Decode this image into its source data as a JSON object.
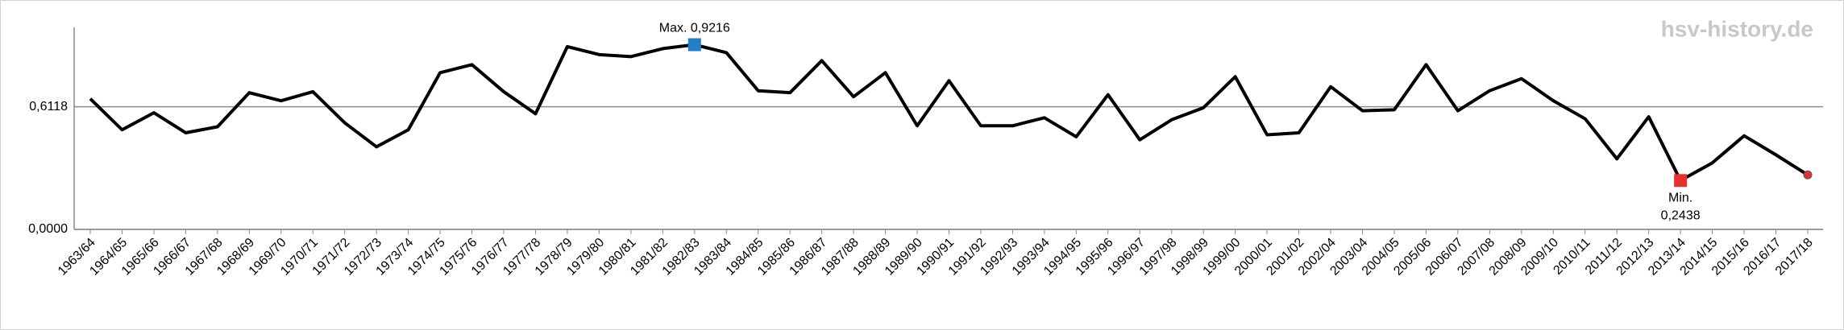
{
  "chart_data": {
    "type": "line",
    "watermark": "hsv-history.de",
    "categories": [
      "1963/64",
      "1964/65",
      "1965/66",
      "1966/67",
      "1967/68",
      "1968/69",
      "1969/70",
      "1970/71",
      "1971/72",
      "1972/73",
      "1973/74",
      "1974/75",
      "1975/76",
      "1976/77",
      "1977/78",
      "1978/79",
      "1979/80",
      "1980/81",
      "1981/82",
      "1982/83",
      "1983/84",
      "1984/85",
      "1985/86",
      "1986/87",
      "1987/88",
      "1988/89",
      "1989/90",
      "1990/91",
      "1991/92",
      "1992/93",
      "1993/94",
      "1994/95",
      "1995/96",
      "1996/97",
      "1997/98",
      "1998/99",
      "1999/00",
      "2000/01",
      "2001/02",
      "2002/04",
      "2003/04",
      "2004/05",
      "2005/06",
      "2006/07",
      "2007/08",
      "2008/09",
      "2009/10",
      "2010/11",
      "2011/12",
      "2012/13",
      "2013/14",
      "2014/15",
      "2015/16",
      "2016/17",
      "2017/18"
    ],
    "series": [
      {
        "color": "#000000",
        "end_marker_color": "#e8312f",
        "values": [
          0.652,
          0.497,
          0.582,
          0.482,
          0.512,
          0.682,
          0.642,
          0.687,
          0.532,
          0.412,
          0.497,
          0.782,
          0.822,
          0.687,
          0.577,
          0.912,
          0.872,
          0.862,
          0.902,
          0.9216,
          0.882,
          0.692,
          0.682,
          0.842,
          0.662,
          0.782,
          0.517,
          0.742,
          0.517,
          0.517,
          0.557,
          0.462,
          0.672,
          0.447,
          0.547,
          0.607,
          0.762,
          0.472,
          0.482,
          0.712,
          0.592,
          0.597,
          0.822,
          0.592,
          0.692,
          0.752,
          0.642,
          0.552,
          0.352,
          0.562,
          0.2438,
          0.332,
          0.467,
          0.372,
          0.272
        ]
      }
    ],
    "annotations": [
      {
        "x": "1982/83",
        "lines": [
          "Max. 0,9216"
        ],
        "color": "#1f7fc7",
        "position": "above"
      },
      {
        "x": "2013/14",
        "lines": [
          "Min.",
          "0,2438"
        ],
        "color": "#e8312f",
        "position": "below"
      }
    ],
    "ylim": [
      0,
      1.0
    ],
    "yticks": [
      {
        "value": 0,
        "label": "0,0000"
      },
      {
        "value": 0.6118,
        "label": "0,6118"
      }
    ],
    "grid": true
  }
}
